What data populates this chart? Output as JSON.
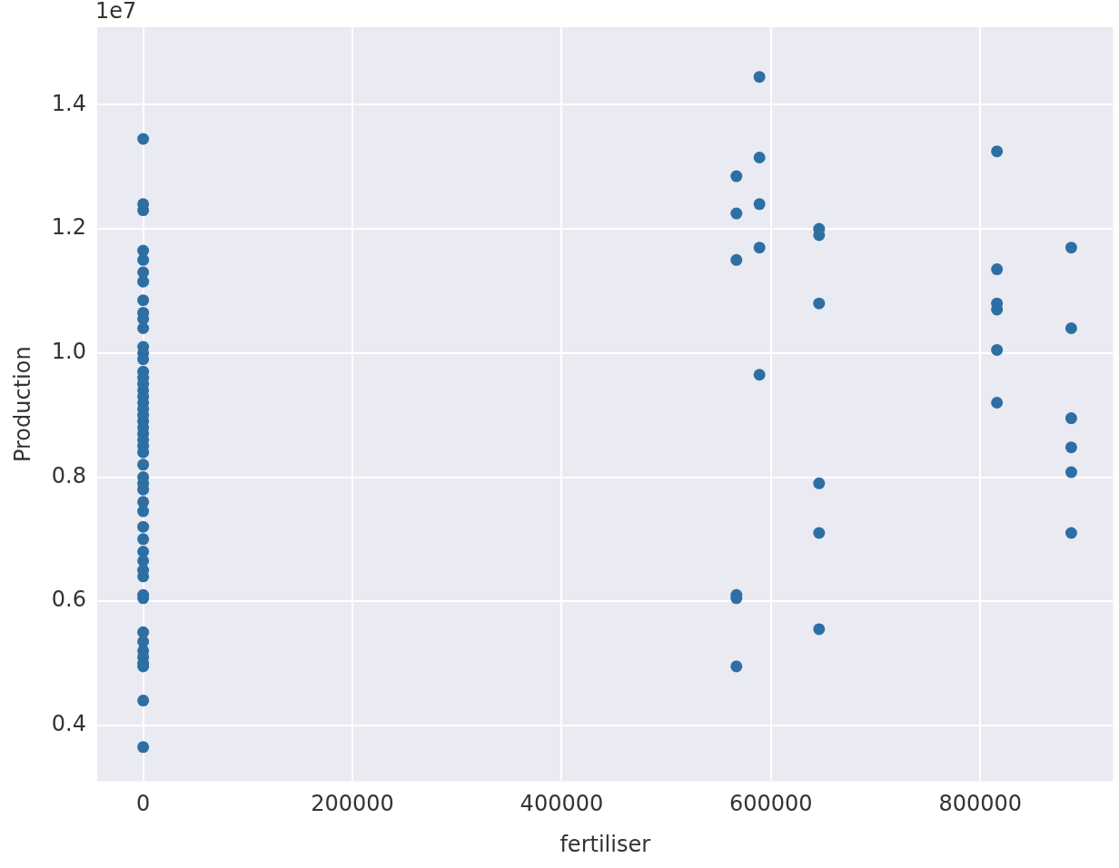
{
  "chart_data": {
    "type": "scatter",
    "xlabel": "fertiliser",
    "ylabel": "Production",
    "annotations": [
      "1e7"
    ],
    "color": "#2d6fa3",
    "marker": "circle",
    "grid": true,
    "xlim": [
      -44000,
      927000
    ],
    "xticks": [
      0,
      200000,
      400000,
      600000,
      800000
    ],
    "ylim": [
      0.31,
      1.525
    ],
    "yticks": [
      0.4,
      0.6,
      0.8,
      {
        "value": 1,
        "label": "1.0"
      },
      1.2,
      1.4
    ],
    "x": [
      0,
      0,
      0,
      0,
      0,
      0,
      0,
      0,
      0,
      0,
      0,
      0,
      0,
      0,
      0,
      0,
      0,
      0,
      0,
      0,
      0,
      0,
      0,
      0,
      0,
      0,
      0,
      0,
      0,
      0,
      0,
      0,
      0,
      0,
      0,
      0,
      0,
      0,
      0,
      0,
      0,
      0,
      0,
      0,
      0,
      0,
      0,
      0,
      0,
      0,
      567000,
      567000,
      567000,
      567000,
      567000,
      567000,
      589000,
      589000,
      589000,
      589000,
      589000,
      646000,
      646000,
      646000,
      646000,
      646000,
      646000,
      816000,
      816000,
      816000,
      816000,
      816000,
      816000,
      887000,
      887000,
      887000,
      887000,
      887000,
      887000
    ],
    "values": [
      1.345,
      1.24,
      1.23,
      1.165,
      1.15,
      1.13,
      1.115,
      1.085,
      1.065,
      1.055,
      1.04,
      1.01,
      1.0,
      0.99,
      0.97,
      0.96,
      0.95,
      0.94,
      0.93,
      0.92,
      0.91,
      0.9,
      0.89,
      0.88,
      0.87,
      0.86,
      0.85,
      0.84,
      0.82,
      0.8,
      0.79,
      0.78,
      0.76,
      0.745,
      0.72,
      0.7,
      0.68,
      0.665,
      0.65,
      0.64,
      0.61,
      0.605,
      0.55,
      0.535,
      0.52,
      0.51,
      0.5,
      0.495,
      0.44,
      0.365,
      1.285,
      1.225,
      1.15,
      0.61,
      0.605,
      0.495,
      1.445,
      1.315,
      1.24,
      1.17,
      0.965,
      1.2,
      1.19,
      1.08,
      0.79,
      0.71,
      0.555,
      1.325,
      1.135,
      1.08,
      1.07,
      1.005,
      0.92,
      1.17,
      1.04,
      0.895,
      0.848,
      0.808,
      0.71
    ]
  }
}
